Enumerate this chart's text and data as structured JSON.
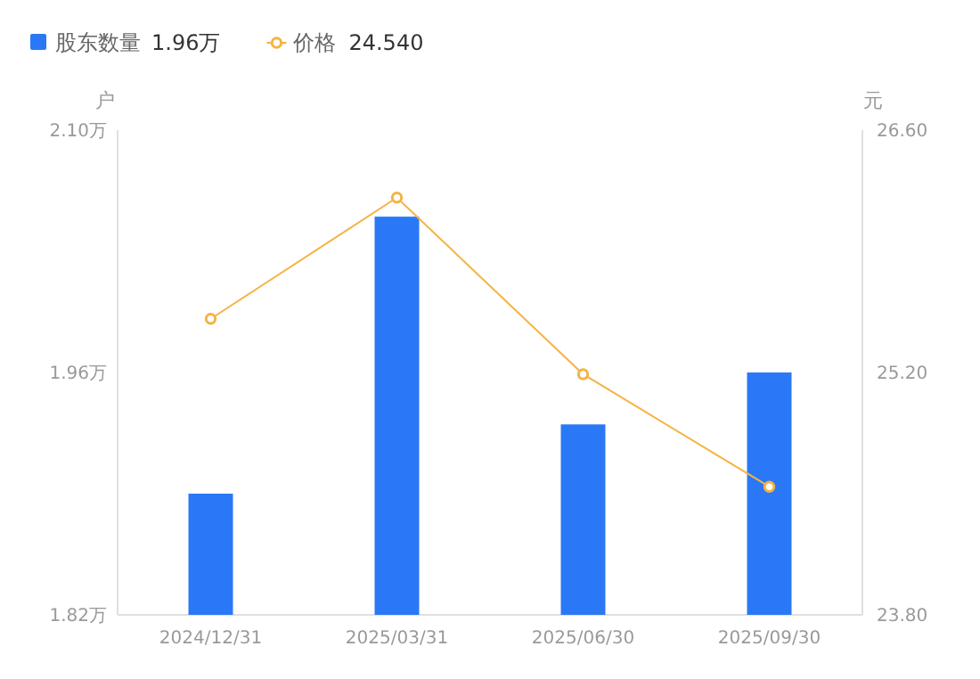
{
  "chart_data": {
    "type": "bar",
    "categories": [
      "2024/12/31",
      "2025/03/31",
      "2025/06/30",
      "2025/09/30"
    ],
    "series": [
      {
        "name": "股东数量",
        "color": "#2a78f6",
        "values": [
          1.89,
          2.05,
          1.93,
          1.96
        ]
      },
      {
        "name": "价格",
        "type": "line",
        "axis": "y2",
        "color": "#f5b342",
        "marker": "circle",
        "values": [
          25.51,
          26.21,
          25.19,
          24.54
        ]
      }
    ],
    "ylabel": "户",
    "y2label": "元",
    "ylim": [
      1.82,
      2.1
    ],
    "yticks": [
      {
        "value": 1.82,
        "label": "1.82万"
      },
      {
        "value": 1.96,
        "label": "1.96万"
      },
      {
        "value": 2.1,
        "label": "2.10万"
      }
    ],
    "y2lim": [
      23.8,
      26.6
    ],
    "y2ticks": [
      {
        "value": 23.8,
        "label": "23.80"
      },
      {
        "value": 25.2,
        "label": "25.20"
      },
      {
        "value": 26.6,
        "label": "26.60"
      }
    ],
    "annotations": [
      "1.96万",
      "24.540"
    ],
    "legend": "top left",
    "grid": false
  }
}
